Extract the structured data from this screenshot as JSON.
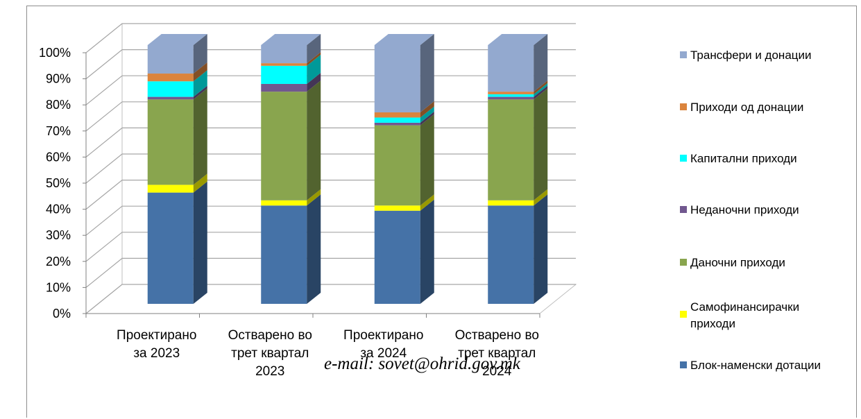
{
  "chart_data": {
    "type": "bar",
    "stacked": true,
    "percent_stacked": true,
    "three_d": true,
    "categories": [
      [
        "Проектирано",
        "за 2023"
      ],
      [
        "Остварено во",
        "трет квартал",
        "2023"
      ],
      [
        "Проектирано",
        "за 2024"
      ],
      [
        "Остварено во",
        "трет квартал",
        "2024"
      ]
    ],
    "series": [
      {
        "name": "Блок-наменски дотации",
        "color": "#4572a7",
        "values": [
          43,
          38,
          36,
          38
        ]
      },
      {
        "name": "Самофинансирачки приходи",
        "color": "#ffff00",
        "values": [
          3,
          2,
          2,
          2
        ]
      },
      {
        "name": "Даночни приходи",
        "color": "#89a54e",
        "values": [
          33,
          42,
          31,
          39
        ]
      },
      {
        "name": "Неданочни приходи",
        "color": "#71588f",
        "values": [
          1,
          3,
          1,
          1
        ]
      },
      {
        "name": "Капитални приходи",
        "color": "#00ffff",
        "values": [
          6,
          7,
          2,
          1
        ]
      },
      {
        "name": "Приходи од донации",
        "color": "#db843d",
        "values": [
          3,
          1,
          2,
          1
        ]
      },
      {
        "name": "Трансфери и донации",
        "color": "#93a9cf",
        "values": [
          11,
          7,
          26,
          18
        ]
      }
    ],
    "y_ticks": [
      "0%",
      "10%",
      "20%",
      "30%",
      "40%",
      "50%",
      "60%",
      "70%",
      "80%",
      "90%",
      "100%"
    ],
    "ylim": [
      0,
      100
    ],
    "grid": true,
    "legend_position": "right",
    "title": "",
    "xlabel": "",
    "ylabel": ""
  },
  "footer": {
    "email": "e-mail: sovet@ohrid.gov.mk"
  }
}
